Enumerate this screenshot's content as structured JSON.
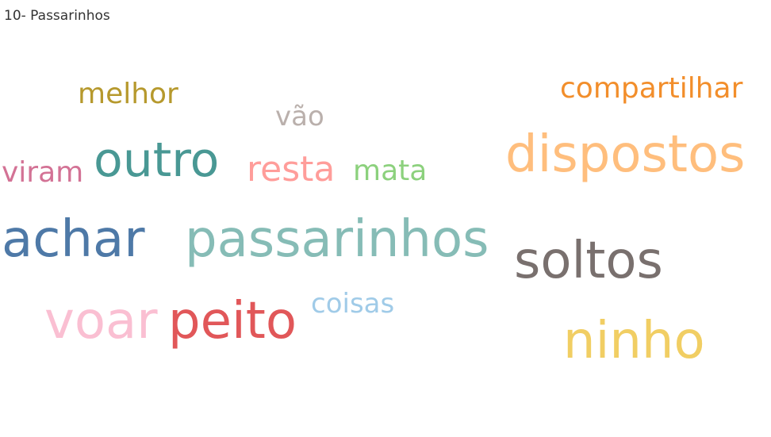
{
  "title": "10- Passarinhos",
  "chart_data": {
    "type": "wordcloud",
    "title": "10- Passarinhos",
    "words": [
      {
        "text": "passarinhos",
        "weight": 10,
        "color": "#86BCB6"
      },
      {
        "text": "achar",
        "weight": 9,
        "color": "#4E79A7"
      },
      {
        "text": "dispostos",
        "weight": 9,
        "color": "#FFBE7D"
      },
      {
        "text": "soltos",
        "weight": 9,
        "color": "#79706E"
      },
      {
        "text": "ninho",
        "weight": 9,
        "color": "#F1CE63"
      },
      {
        "text": "peito",
        "weight": 9,
        "color": "#E15759"
      },
      {
        "text": "voar",
        "weight": 9,
        "color": "#FABFD2"
      },
      {
        "text": "outro",
        "weight": 8,
        "color": "#499894"
      },
      {
        "text": "resta",
        "weight": 6,
        "color": "#FF9D9A"
      },
      {
        "text": "compartilhar",
        "weight": 5,
        "color": "#F28E2B"
      },
      {
        "text": "melhor",
        "weight": 5,
        "color": "#B6992D"
      },
      {
        "text": "mata",
        "weight": 5,
        "color": "#8CD17D"
      },
      {
        "text": "viram",
        "weight": 5,
        "color": "#D37295"
      },
      {
        "text": "coisas",
        "weight": 4,
        "color": "#A0CBE8"
      },
      {
        "text": "vão",
        "weight": 4,
        "color": "#BAB0AC"
      }
    ]
  }
}
